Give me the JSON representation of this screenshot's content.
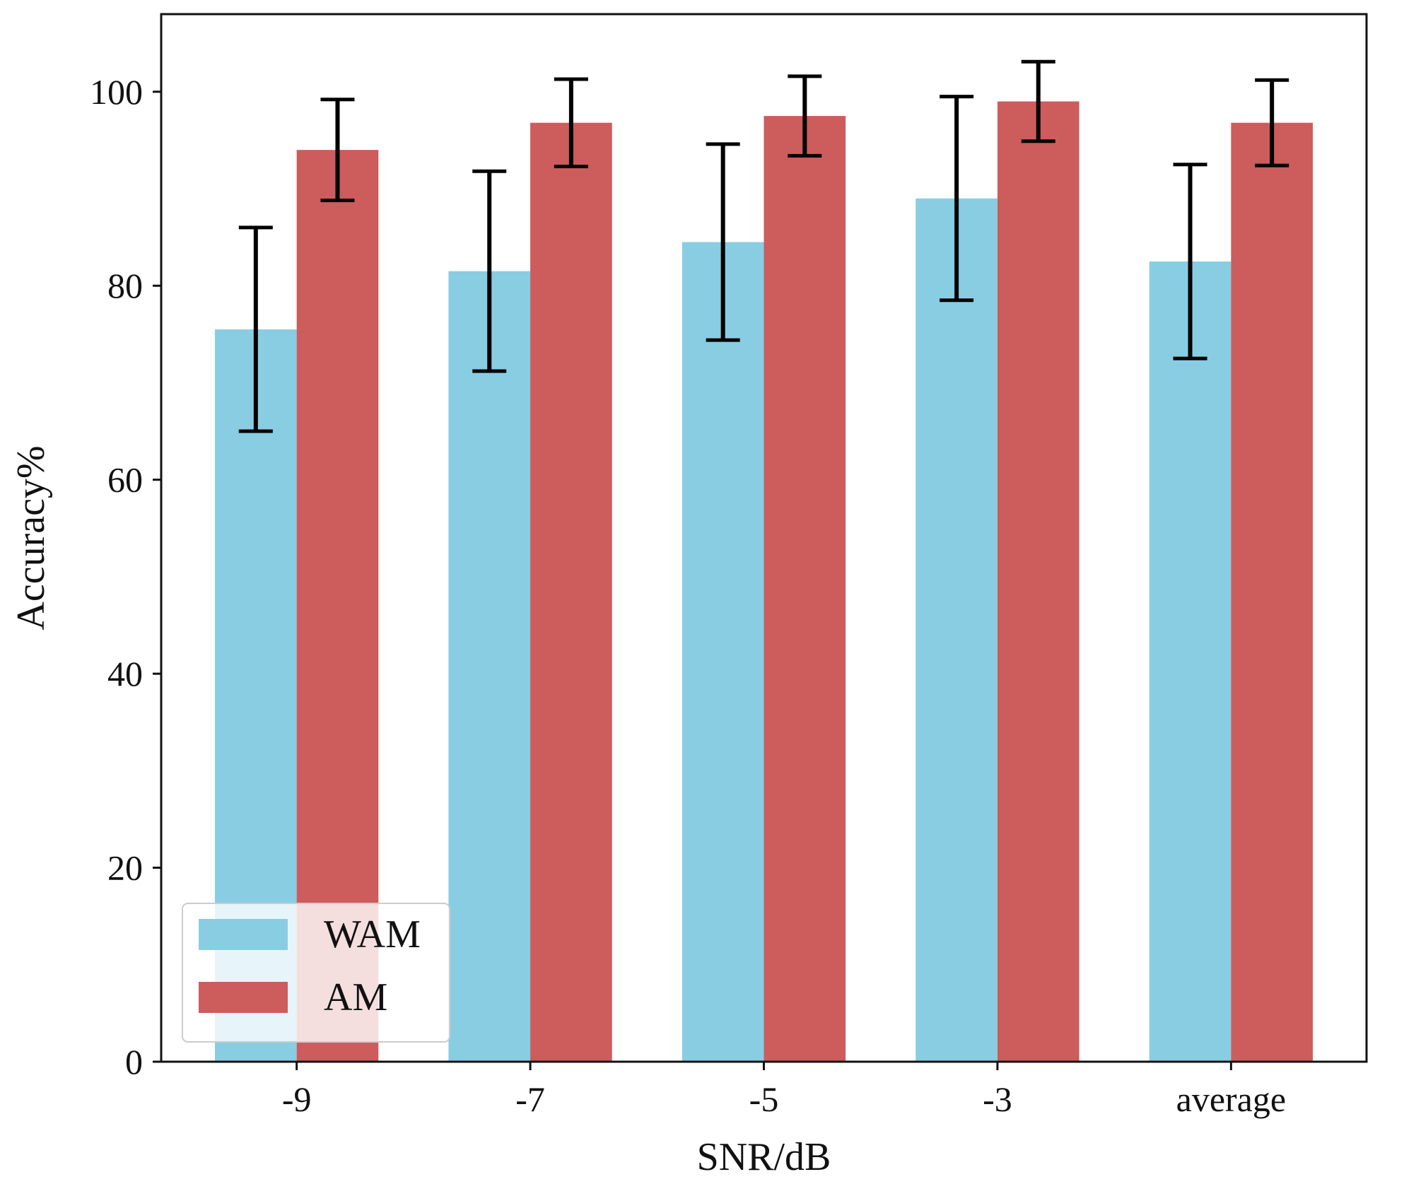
{
  "chart_data": {
    "type": "bar",
    "title": "",
    "xlabel": "SNR/dB",
    "ylabel": "Accuracy%",
    "categories": [
      "-9",
      "-7",
      "-5",
      "-3",
      "average"
    ],
    "ylim": [
      0,
      108
    ],
    "yticks": [
      0,
      20,
      40,
      60,
      80,
      100
    ],
    "grid": false,
    "legend_position": "lower-left",
    "series": [
      {
        "name": "WAM",
        "color": "#89CDE3",
        "values": [
          75.5,
          81.5,
          84.5,
          89.0,
          82.5
        ],
        "errors": [
          10.5,
          10.3,
          10.1,
          10.5,
          10.0
        ]
      },
      {
        "name": "AM",
        "color": "#CD5C5C",
        "values": [
          94.0,
          96.8,
          97.5,
          99.0,
          96.8
        ],
        "errors": [
          5.2,
          4.5,
          4.1,
          4.1,
          4.4
        ]
      }
    ]
  }
}
